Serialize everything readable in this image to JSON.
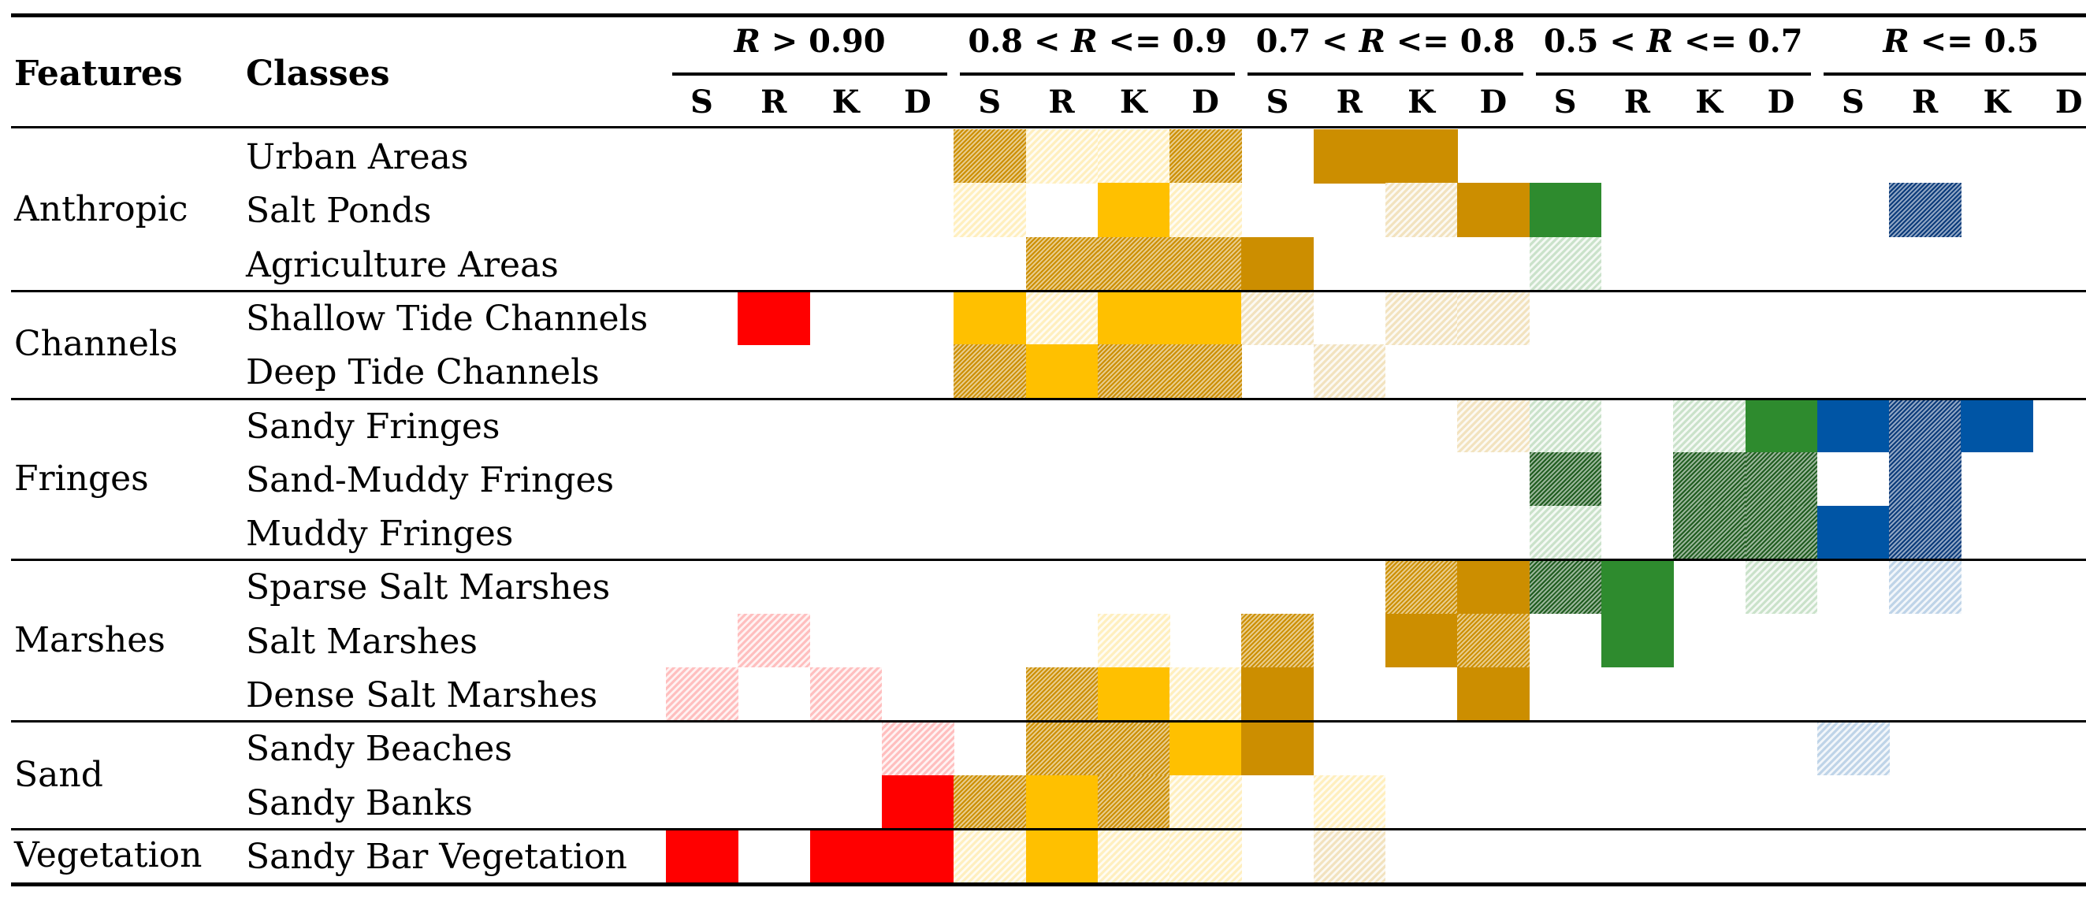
{
  "headers": {
    "features": "Features",
    "classes": "Classes"
  },
  "groups": [
    {
      "label_pre": "",
      "label_r": "R",
      "label_post": " > 0.90"
    },
    {
      "label_pre": "0.8 < ",
      "label_r": "R",
      "label_post": " <= 0.9"
    },
    {
      "label_pre": "0.7 < ",
      "label_r": "R",
      "label_post": " <= 0.8"
    },
    {
      "label_pre": "0.5 < ",
      "label_r": "R",
      "label_post": " <= 0.7"
    },
    {
      "label_pre": "",
      "label_r": "R",
      "label_post": " <= 0.5"
    }
  ],
  "subcolumns": [
    "S",
    "R",
    "K",
    "D"
  ],
  "colors": {
    "red": "#ff0000",
    "gold": "#ffc000",
    "ochre": "#cc8e00",
    "green": "#2e8b2e",
    "darkgreen": "#1f5c1f",
    "blue": "#0055a5",
    "darkblue": "#0a3a7a"
  },
  "features": [
    {
      "name": "Anthropic",
      "first_row": 0,
      "row_count": 3
    },
    {
      "name": "Channels",
      "first_row": 3,
      "row_count": 2
    },
    {
      "name": "Fringes",
      "first_row": 5,
      "row_count": 3
    },
    {
      "name": "Marshes",
      "first_row": 8,
      "row_count": 3
    },
    {
      "name": "Sand",
      "first_row": 11,
      "row_count": 2
    },
    {
      "name": "Vegetation",
      "first_row": 13,
      "row_count": 1
    }
  ],
  "rows": [
    {
      "class": "Urban Areas",
      "cells": [
        {
          "col": 4,
          "color": "ochre",
          "style": "dark"
        },
        {
          "col": 5,
          "color": "gold",
          "style": "light"
        },
        {
          "col": 6,
          "color": "gold",
          "style": "light"
        },
        {
          "col": 7,
          "color": "ochre",
          "style": "dark"
        },
        {
          "col": 9,
          "color": "ochre",
          "style": "solid"
        },
        {
          "col": 10,
          "color": "ochre",
          "style": "solid"
        }
      ]
    },
    {
      "class": "Salt Ponds",
      "cells": [
        {
          "col": 4,
          "color": "gold",
          "style": "light"
        },
        {
          "col": 6,
          "color": "gold",
          "style": "solid"
        },
        {
          "col": 7,
          "color": "gold",
          "style": "light"
        },
        {
          "col": 10,
          "color": "ochre",
          "style": "light"
        },
        {
          "col": 11,
          "color": "ochre",
          "style": "solid"
        },
        {
          "col": 12,
          "color": "green",
          "style": "solid"
        },
        {
          "col": 17,
          "color": "darkblue",
          "style": "dark"
        }
      ]
    },
    {
      "class": "Agriculture Areas",
      "cells": [
        {
          "col": 5,
          "color": "ochre",
          "style": "dark"
        },
        {
          "col": 6,
          "color": "ochre",
          "style": "dark"
        },
        {
          "col": 7,
          "color": "ochre",
          "style": "dark"
        },
        {
          "col": 8,
          "color": "ochre",
          "style": "solid"
        },
        {
          "col": 12,
          "color": "green",
          "style": "light"
        }
      ]
    },
    {
      "class": "Shallow Tide Channels",
      "cells": [
        {
          "col": 1,
          "color": "red",
          "style": "solid"
        },
        {
          "col": 4,
          "color": "gold",
          "style": "solid"
        },
        {
          "col": 5,
          "color": "gold",
          "style": "light"
        },
        {
          "col": 6,
          "color": "gold",
          "style": "solid"
        },
        {
          "col": 7,
          "color": "gold",
          "style": "solid"
        },
        {
          "col": 8,
          "color": "ochre",
          "style": "light"
        },
        {
          "col": 10,
          "color": "ochre",
          "style": "light"
        },
        {
          "col": 11,
          "color": "ochre",
          "style": "light"
        }
      ]
    },
    {
      "class": "Deep Tide Channels",
      "cells": [
        {
          "col": 4,
          "color": "ochre",
          "style": "dark"
        },
        {
          "col": 5,
          "color": "gold",
          "style": "solid"
        },
        {
          "col": 6,
          "color": "ochre",
          "style": "dark"
        },
        {
          "col": 7,
          "color": "ochre",
          "style": "dark"
        },
        {
          "col": 9,
          "color": "ochre",
          "style": "light"
        }
      ]
    },
    {
      "class": "Sandy Fringes",
      "cells": [
        {
          "col": 11,
          "color": "ochre",
          "style": "light"
        },
        {
          "col": 12,
          "color": "green",
          "style": "light"
        },
        {
          "col": 14,
          "color": "green",
          "style": "light"
        },
        {
          "col": 15,
          "color": "green",
          "style": "solid"
        },
        {
          "col": 16,
          "color": "blue",
          "style": "solid"
        },
        {
          "col": 17,
          "color": "darkblue",
          "style": "dark"
        },
        {
          "col": 18,
          "color": "blue",
          "style": "solid"
        }
      ]
    },
    {
      "class": "Sand-Muddy Fringes",
      "cells": [
        {
          "col": 12,
          "color": "darkgreen",
          "style": "dark"
        },
        {
          "col": 14,
          "color": "darkgreen",
          "style": "dark"
        },
        {
          "col": 15,
          "color": "darkgreen",
          "style": "dark"
        },
        {
          "col": 17,
          "color": "darkblue",
          "style": "dark"
        }
      ]
    },
    {
      "class": "Muddy Fringes",
      "cells": [
        {
          "col": 12,
          "color": "green",
          "style": "light"
        },
        {
          "col": 14,
          "color": "darkgreen",
          "style": "dark"
        },
        {
          "col": 15,
          "color": "darkgreen",
          "style": "dark"
        },
        {
          "col": 16,
          "color": "blue",
          "style": "solid"
        },
        {
          "col": 17,
          "color": "darkblue",
          "style": "dark"
        }
      ]
    },
    {
      "class": "Sparse Salt Marshes",
      "cells": [
        {
          "col": 10,
          "color": "ochre",
          "style": "dark"
        },
        {
          "col": 11,
          "color": "ochre",
          "style": "solid"
        },
        {
          "col": 12,
          "color": "darkgreen",
          "style": "dark"
        },
        {
          "col": 13,
          "color": "green",
          "style": "solid"
        },
        {
          "col": 15,
          "color": "green",
          "style": "light"
        },
        {
          "col": 17,
          "color": "blue",
          "style": "light"
        }
      ]
    },
    {
      "class": "Salt Marshes",
      "cells": [
        {
          "col": 1,
          "color": "red",
          "style": "light"
        },
        {
          "col": 6,
          "color": "gold",
          "style": "light"
        },
        {
          "col": 8,
          "color": "ochre",
          "style": "dark"
        },
        {
          "col": 10,
          "color": "ochre",
          "style": "solid"
        },
        {
          "col": 11,
          "color": "ochre",
          "style": "dark"
        },
        {
          "col": 13,
          "color": "green",
          "style": "solid"
        }
      ]
    },
    {
      "class": "Dense Salt Marshes",
      "cells": [
        {
          "col": 0,
          "color": "red",
          "style": "light"
        },
        {
          "col": 2,
          "color": "red",
          "style": "light"
        },
        {
          "col": 5,
          "color": "ochre",
          "style": "dark"
        },
        {
          "col": 6,
          "color": "gold",
          "style": "solid"
        },
        {
          "col": 7,
          "color": "gold",
          "style": "light"
        },
        {
          "col": 8,
          "color": "ochre",
          "style": "solid"
        },
        {
          "col": 11,
          "color": "ochre",
          "style": "solid"
        }
      ]
    },
    {
      "class": "Sandy Beaches",
      "cells": [
        {
          "col": 3,
          "color": "red",
          "style": "light"
        },
        {
          "col": 5,
          "color": "ochre",
          "style": "dark"
        },
        {
          "col": 6,
          "color": "ochre",
          "style": "dark"
        },
        {
          "col": 7,
          "color": "gold",
          "style": "solid"
        },
        {
          "col": 8,
          "color": "ochre",
          "style": "solid"
        },
        {
          "col": 16,
          "color": "blue",
          "style": "light"
        }
      ]
    },
    {
      "class": "Sandy Banks",
      "cells": [
        {
          "col": 3,
          "color": "red",
          "style": "solid"
        },
        {
          "col": 4,
          "color": "ochre",
          "style": "dark"
        },
        {
          "col": 5,
          "color": "gold",
          "style": "solid"
        },
        {
          "col": 6,
          "color": "ochre",
          "style": "dark"
        },
        {
          "col": 7,
          "color": "gold",
          "style": "light"
        },
        {
          "col": 9,
          "color": "gold",
          "style": "light"
        }
      ]
    },
    {
      "class": "Sandy Bar Vegetation",
      "cells": [
        {
          "col": 0,
          "color": "red",
          "style": "solid"
        },
        {
          "col": 2,
          "color": "red",
          "style": "solid"
        },
        {
          "col": 3,
          "color": "red",
          "style": "solid"
        },
        {
          "col": 4,
          "color": "gold",
          "style": "light"
        },
        {
          "col": 5,
          "color": "gold",
          "style": "solid"
        },
        {
          "col": 6,
          "color": "gold",
          "style": "light"
        },
        {
          "col": 7,
          "color": "gold",
          "style": "light"
        },
        {
          "col": 9,
          "color": "ochre",
          "style": "light"
        }
      ]
    }
  ]
}
